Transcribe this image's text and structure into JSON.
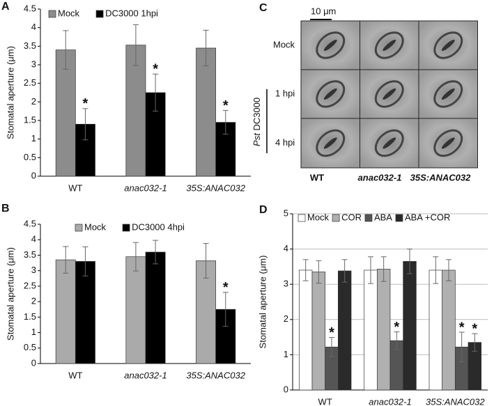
{
  "chart_data": [
    {
      "type": "bar",
      "panel": "A",
      "y_label": "Stomatal aperture (μm)",
      "categories": [
        "WT",
        "anac032-1",
        "35S:ANAC032"
      ],
      "ylim": [
        0,
        4.5
      ],
      "yticks": [
        0,
        0.5,
        1,
        1.5,
        2,
        2.5,
        3,
        3.5,
        4,
        4.5
      ],
      "grid": false,
      "series": [
        {
          "name": "Mock",
          "color": "#8c8c8c",
          "values": [
            3.4,
            3.53,
            3.45
          ],
          "errors": [
            0.52,
            0.55,
            0.48
          ],
          "annotations": [
            null,
            null,
            null
          ]
        },
        {
          "name": "DC3000 1hpi",
          "color": "#000000",
          "values": [
            1.4,
            2.25,
            1.45
          ],
          "errors": [
            0.42,
            0.5,
            0.32
          ],
          "annotations": [
            "*",
            "*",
            "*"
          ]
        }
      ]
    },
    {
      "type": "bar",
      "panel": "B",
      "y_label": "Stomatal aperture (μm)",
      "categories": [
        "WT",
        "anac032-1",
        "35S:ANAC032"
      ],
      "ylim": [
        0,
        4.5
      ],
      "yticks": [
        0,
        0.5,
        1,
        1.5,
        2,
        2.5,
        3,
        3.5,
        4,
        4.5
      ],
      "grid": false,
      "series": [
        {
          "name": "Mock",
          "color": "#aaaaaa",
          "values": [
            3.35,
            3.45,
            3.32
          ],
          "errors": [
            0.43,
            0.46,
            0.56
          ],
          "annotations": [
            null,
            null,
            null
          ]
        },
        {
          "name": "DC3000 4hpi",
          "color": "#000000",
          "values": [
            3.3,
            3.6,
            1.75
          ],
          "errors": [
            0.47,
            0.38,
            0.55
          ],
          "annotations": [
            null,
            null,
            "*"
          ]
        }
      ]
    },
    {
      "type": "bar",
      "panel": "D",
      "y_label": "Stomatal aperture (μm)",
      "categories": [
        "WT",
        "anac032-1",
        "35S:ANAC032"
      ],
      "ylim": [
        0,
        5
      ],
      "yticks": [
        0,
        1,
        2,
        3,
        4,
        5
      ],
      "grid": true,
      "series": [
        {
          "name": "Mock",
          "color": "#ffffff",
          "values": [
            3.4,
            3.4,
            3.4
          ],
          "errors": [
            0.3,
            0.38,
            0.38
          ],
          "annotations": [
            null,
            null,
            null
          ]
        },
        {
          "name": "COR",
          "color": "#b0b0b0",
          "values": [
            3.35,
            3.43,
            3.4
          ],
          "errors": [
            0.32,
            0.35,
            0.3
          ],
          "annotations": [
            null,
            null,
            null
          ]
        },
        {
          "name": "ABA",
          "color": "#555555",
          "values": [
            1.22,
            1.4,
            1.22
          ],
          "errors": [
            0.27,
            0.25,
            0.42
          ],
          "annotations": [
            "*",
            "*",
            "*"
          ]
        },
        {
          "name": "ABA +COR",
          "color": "#2a2a2a",
          "values": [
            3.38,
            3.65,
            1.35
          ],
          "errors": [
            0.32,
            0.35,
            0.25
          ],
          "annotations": [
            null,
            null,
            "*"
          ]
        }
      ]
    }
  ],
  "image_panel": {
    "panel": "C",
    "scale_bar": "10 μm",
    "row_group_italic": "Pst",
    "row_group": "DC3000",
    "rows": [
      "Mock",
      "1 hpi",
      "4 hpi"
    ],
    "columns": [
      "WT",
      "anac032-1",
      "35S:ANAC032"
    ]
  }
}
